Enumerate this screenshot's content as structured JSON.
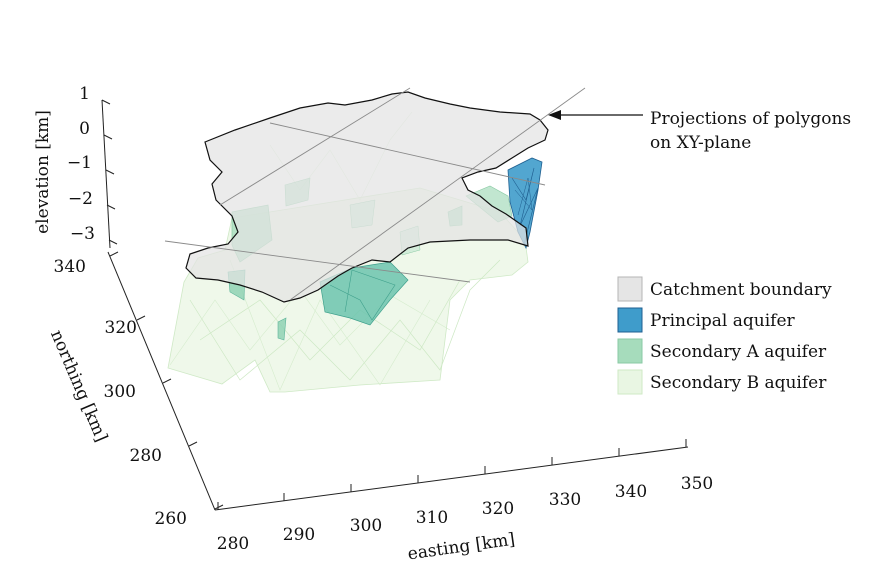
{
  "annotation": {
    "line1": "Projections of polygons",
    "line2": "on XY-plane"
  },
  "legend": {
    "items": [
      {
        "label": "Catchment boundary",
        "fill": "#e5e5e5",
        "stroke": "#b5b5b5"
      },
      {
        "label": "Principal aquifer",
        "fill": "#3f9ccb",
        "stroke": "#1f5f90"
      },
      {
        "label": "Secondary A aquifer",
        "fill": "#a6dcbc",
        "stroke": "#8acaa4"
      },
      {
        "label": "Secondary B aquifer",
        "fill": "#e9f6e3",
        "stroke": "#cfe9c6"
      }
    ]
  },
  "axes": {
    "x": {
      "label": "easting [km]",
      "ticks": [
        "280",
        "290",
        "300",
        "310",
        "320",
        "330",
        "340",
        "350"
      ]
    },
    "y": {
      "label": "northing [km]",
      "ticks": [
        "260",
        "280",
        "300",
        "320",
        "340"
      ]
    },
    "z": {
      "label": "elevation [km]",
      "ticks": [
        "1",
        "0",
        "−1",
        "−2",
        "−3"
      ]
    }
  }
}
